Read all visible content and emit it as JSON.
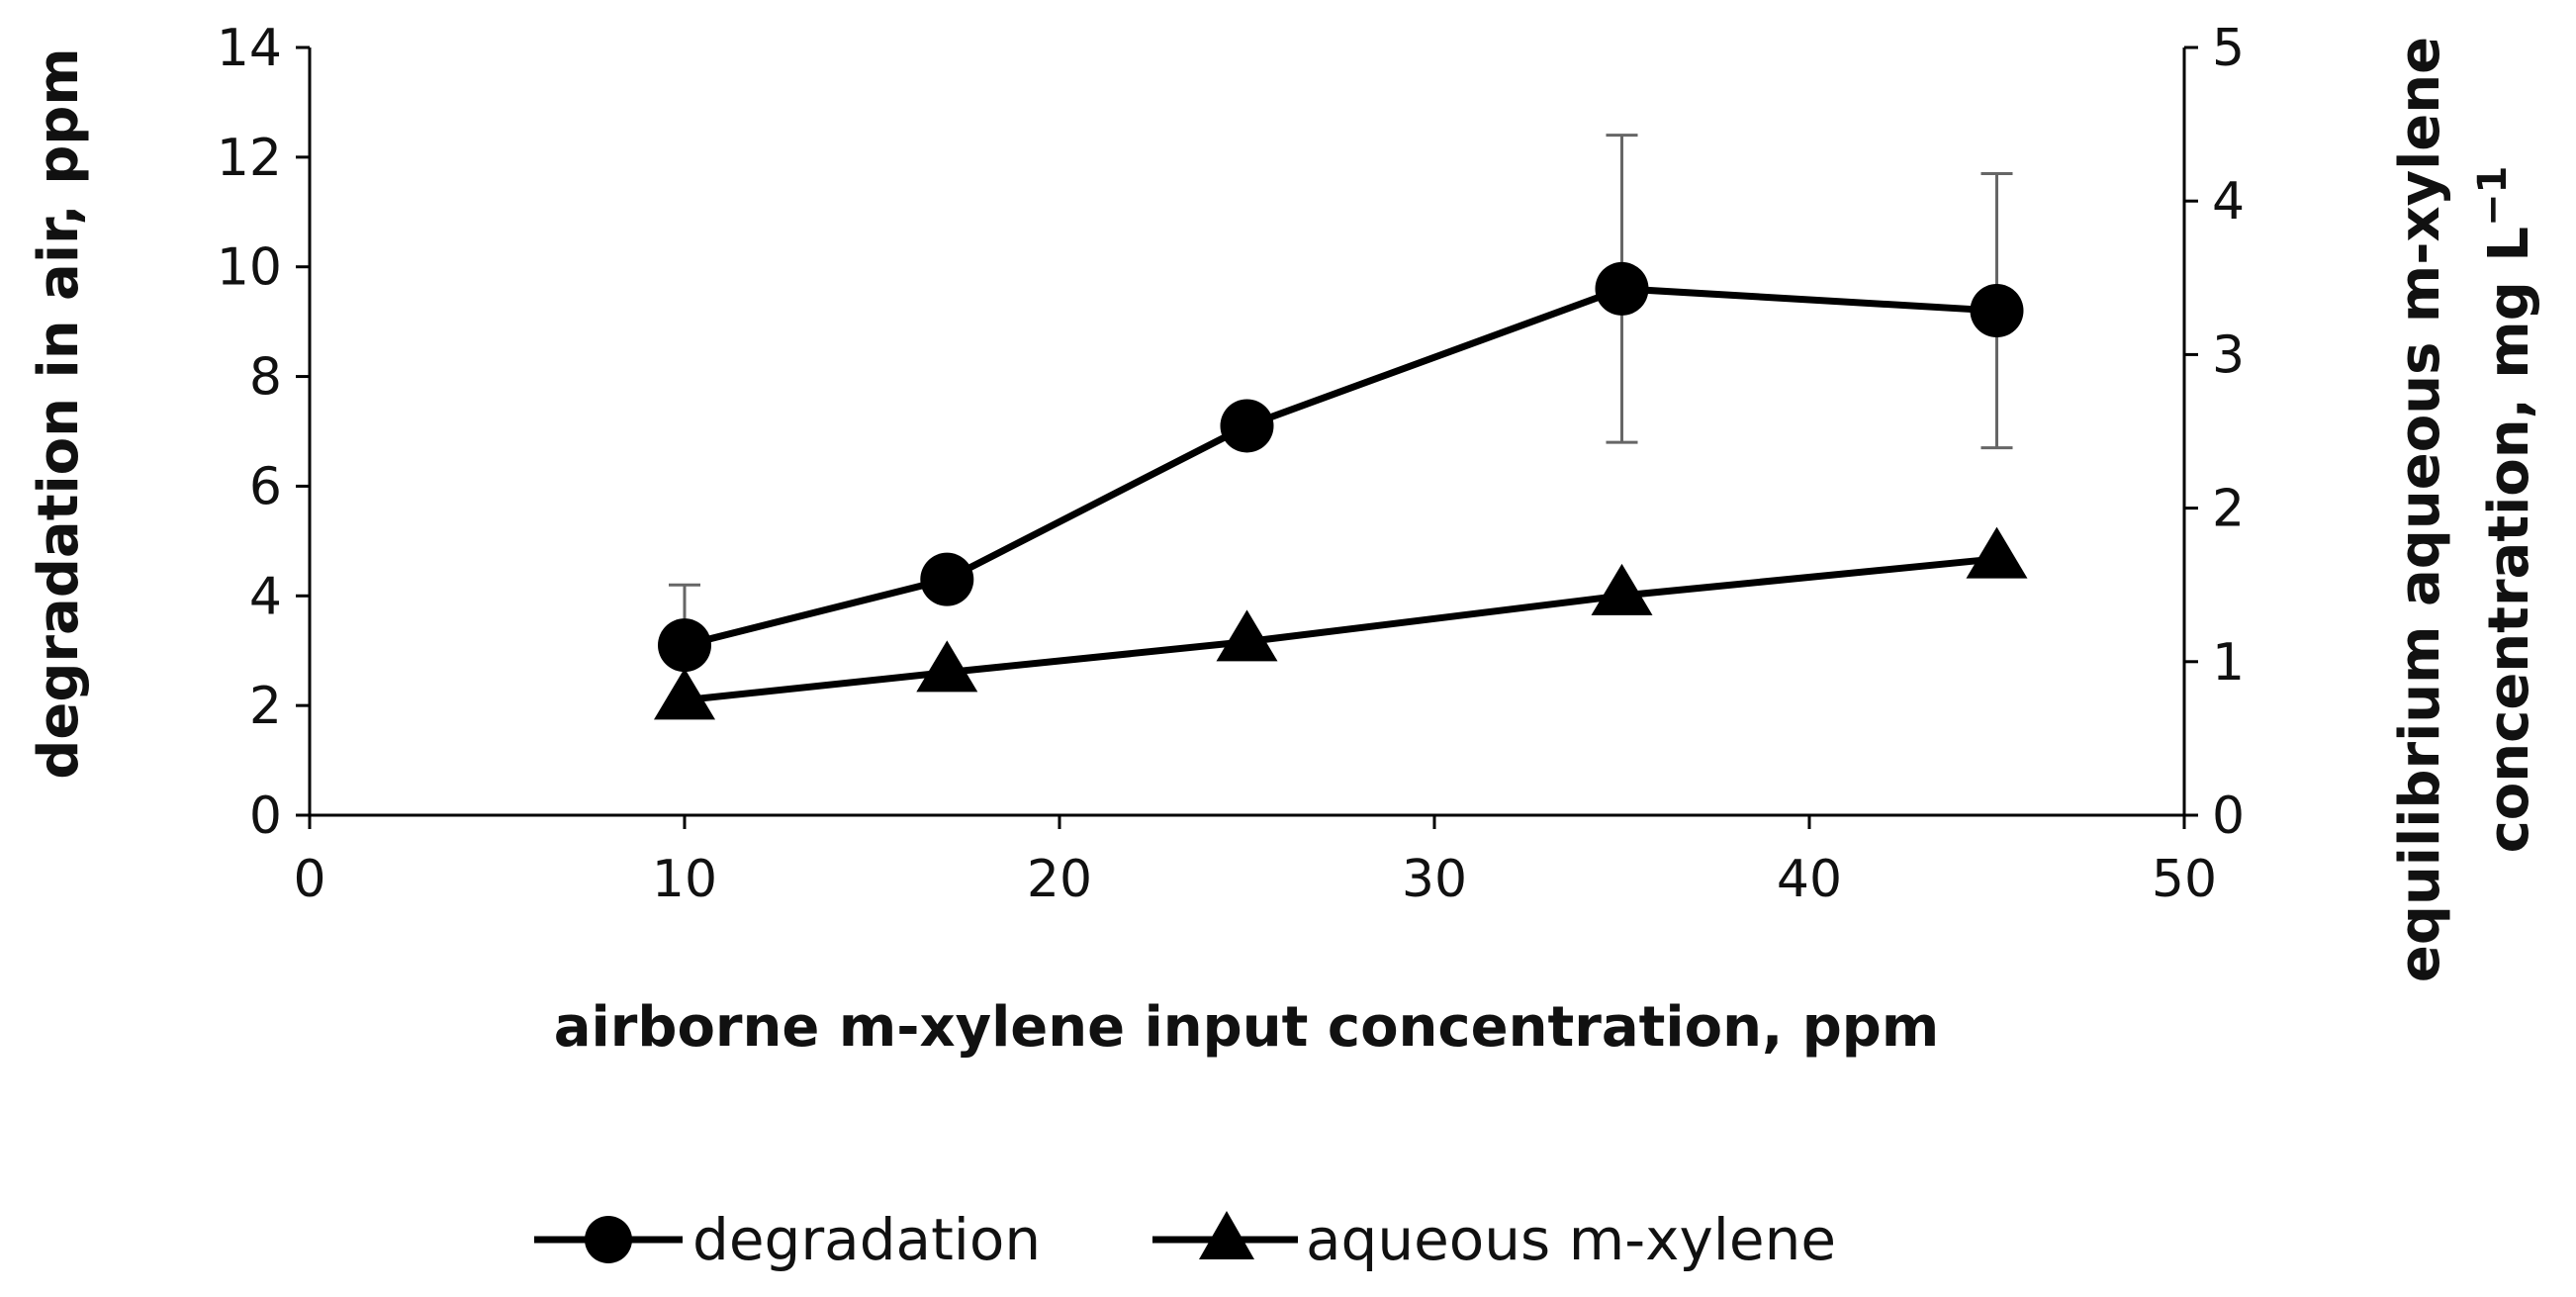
{
  "chart_data": {
    "type": "line",
    "title": "",
    "xlabel": "airborne m-xylene input concentration, ppm",
    "ylabel": "degradation in air, ppm",
    "y2label_line1": "equilibrium aqueous m-xylene",
    "y2label_line2": "concentration, mg L",
    "y2label_superscript": "−1",
    "xlim": [
      0,
      50
    ],
    "ylim": [
      0,
      14
    ],
    "y2lim": [
      0,
      5
    ],
    "xticks": [
      0,
      10,
      20,
      30,
      40,
      50
    ],
    "yticks": [
      0,
      2,
      4,
      6,
      8,
      10,
      12,
      14
    ],
    "y2ticks": [
      0,
      1,
      2,
      3,
      4,
      5
    ],
    "grid": false,
    "legend_position": "bottom",
    "series": [
      {
        "name": "degradation",
        "axis": "left",
        "marker": "circle",
        "color": "#000000",
        "x": [
          10,
          17,
          25,
          35,
          45
        ],
        "y": [
          3.1,
          4.3,
          7.1,
          9.6,
          9.2
        ],
        "error_low": [
          3.1,
          4.0,
          7.1,
          6.8,
          6.7
        ],
        "error_high": [
          4.2,
          4.5,
          7.1,
          12.4,
          11.7
        ]
      },
      {
        "name": "aqueous m-xylene",
        "axis": "right",
        "marker": "triangle",
        "color": "#000000",
        "x": [
          10,
          17,
          25,
          35,
          45
        ],
        "y": [
          0.75,
          0.93,
          1.13,
          1.43,
          1.67
        ]
      }
    ]
  }
}
